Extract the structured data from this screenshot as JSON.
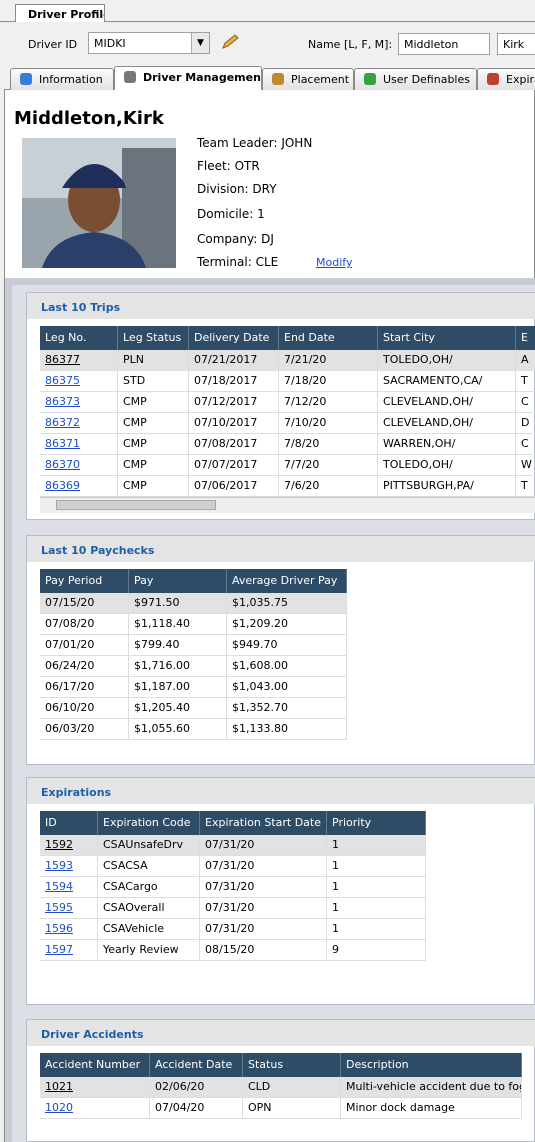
{
  "header": {
    "tab": "Driver Profile",
    "driver_id_label": "Driver ID",
    "driver_id": "MIDKI",
    "name_label": "Name [L, F, M]:",
    "last_name": "Middleton",
    "first_name": "Kirk"
  },
  "tabs": [
    "Information",
    "Driver Management",
    "Placement",
    "User Definables",
    "Expira"
  ],
  "profile": {
    "name": "Middleton,Kirk",
    "details": [
      "Team Leader: JOHN",
      "Fleet: OTR",
      "Division: DRY",
      "Domicile: 1",
      "Company: DJ",
      "Terminal: CLE"
    ],
    "modify": "Modify"
  },
  "trips": {
    "title": "Last 10 Trips",
    "columns": [
      "Leg No.",
      "Leg Status",
      "Delivery Date",
      "End Date",
      "Start City",
      "E"
    ],
    "rows": [
      [
        "86377",
        "PLN",
        "07/21/2017",
        "7/21/20",
        "TOLEDO,OH/",
        "A"
      ],
      [
        "86375",
        "STD",
        "07/18/2017",
        "7/18/20",
        "SACRAMENTO,CA/",
        "T"
      ],
      [
        "86373",
        "CMP",
        "07/12/2017",
        "7/12/20",
        "CLEVELAND,OH/",
        "C"
      ],
      [
        "86372",
        "CMP",
        "07/10/2017",
        "7/10/20",
        "CLEVELAND,OH/",
        "D"
      ],
      [
        "86371",
        "CMP",
        "07/08/2017",
        "7/8/20",
        "WARREN,OH/",
        "C"
      ],
      [
        "86370",
        "CMP",
        "07/07/2017",
        "7/7/20",
        "TOLEDO,OH/",
        "W"
      ],
      [
        "86369",
        "CMP",
        "07/06/2017",
        "7/6/20",
        "PITTSBURGH,PA/",
        "T"
      ]
    ]
  },
  "paychecks": {
    "title": "Last 10 Paychecks",
    "columns": [
      "Pay Period",
      "Pay",
      "Average Driver Pay"
    ],
    "rows": [
      [
        "07/15/20",
        "$971.50",
        "$1,035.75"
      ],
      [
        "07/08/20",
        "$1,118.40",
        "$1,209.20"
      ],
      [
        "07/01/20",
        "$799.40",
        "$949.70"
      ],
      [
        "06/24/20",
        "$1,716.00",
        "$1,608.00"
      ],
      [
        "06/17/20",
        "$1,187.00",
        "$1,043.00"
      ],
      [
        "06/10/20",
        "$1,205.40",
        "$1,352.70"
      ],
      [
        "06/03/20",
        "$1,055.60",
        "$1,133.80"
      ]
    ]
  },
  "expirations": {
    "title": "Expirations",
    "columns": [
      "ID",
      "Expiration Code",
      "Expiration Start Date",
      "Priority"
    ],
    "rows": [
      [
        "1592",
        "CSAUnsafeDrv",
        "07/31/20",
        "1"
      ],
      [
        "1593",
        "CSACSA",
        "07/31/20",
        "1"
      ],
      [
        "1594",
        "CSACargo",
        "07/31/20",
        "1"
      ],
      [
        "1595",
        "CSAOverall",
        "07/31/20",
        "1"
      ],
      [
        "1596",
        "CSAVehicle",
        "07/31/20",
        "1"
      ],
      [
        "1597",
        "Yearly Review",
        "08/15/20",
        "9"
      ]
    ]
  },
  "accidents": {
    "title": "Driver Accidents",
    "columns": [
      "Accident Number",
      "Accident Date",
      "Status",
      "Description"
    ],
    "rows": [
      [
        "1021",
        "02/06/20",
        "CLD",
        "Multi-vehicle accident due to fog"
      ],
      [
        "1020",
        "07/04/20",
        "OPN",
        "Minor dock damage"
      ]
    ]
  }
}
